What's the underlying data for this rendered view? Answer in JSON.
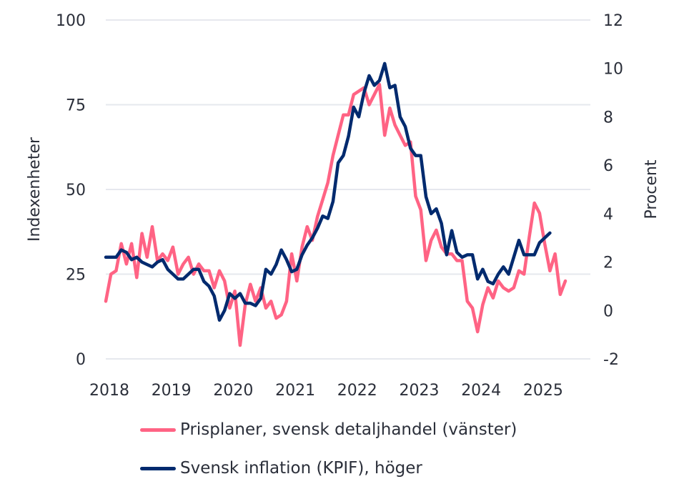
{
  "chart_data": {
    "type": "line",
    "title": "",
    "x_start": "2018-01",
    "x_frequency": "monthly",
    "x_tick_labels": [
      "2018",
      "2019",
      "2020",
      "2021",
      "2022",
      "2023",
      "2024",
      "2025"
    ],
    "left_axis": {
      "label": "Indexenheter",
      "ylim": [
        0,
        100
      ],
      "ticks": [
        0,
        25,
        50,
        75,
        100
      ]
    },
    "right_axis": {
      "label": "Procent",
      "ylim": [
        -2,
        12
      ],
      "ticks": [
        -2,
        0,
        2,
        4,
        6,
        8,
        10,
        12
      ]
    },
    "grid": true,
    "legend_position": "bottom",
    "series": [
      {
        "name": "Prisplaner, svensk detaljhandel (vänster)",
        "axis": "left",
        "color": "#ff6384",
        "values": [
          17,
          25,
          26,
          34,
          28,
          34,
          24,
          37,
          30,
          39,
          29,
          31,
          29,
          33,
          25,
          28,
          30,
          25,
          28,
          26,
          26,
          21,
          26,
          23,
          15,
          20,
          4,
          16,
          22,
          17,
          21,
          15,
          17,
          12,
          13,
          17,
          31,
          23,
          33,
          39,
          35,
          42,
          47,
          52,
          60,
          66,
          72,
          72,
          78,
          79,
          80,
          75,
          78,
          81,
          66,
          74,
          69,
          66,
          63,
          64,
          48,
          44,
          29,
          35,
          38,
          33,
          31,
          31,
          29,
          29,
          17,
          15,
          8,
          16,
          21,
          18,
          23,
          21,
          20,
          21,
          26,
          25,
          36,
          46,
          43,
          34,
          26,
          31,
          19,
          23
        ]
      },
      {
        "name": "Svensk inflation (KPIF), höger",
        "axis": "right",
        "color": "#002a6e",
        "values": [
          2.2,
          2.2,
          2.2,
          2.5,
          2.4,
          2.1,
          2.2,
          2.0,
          1.9,
          1.8,
          2.0,
          2.1,
          1.7,
          1.5,
          1.3,
          1.3,
          1.5,
          1.7,
          1.7,
          1.2,
          1.0,
          0.6,
          -0.4,
          0.0,
          0.7,
          0.5,
          0.7,
          0.3,
          0.3,
          0.2,
          0.5,
          1.7,
          1.5,
          1.9,
          2.5,
          2.1,
          1.6,
          1.7,
          2.3,
          2.7,
          3.0,
          3.4,
          3.9,
          3.8,
          4.5,
          6.1,
          6.4,
          7.2,
          8.4,
          8.0,
          9.0,
          9.7,
          9.3,
          9.5,
          10.2,
          9.2,
          9.3,
          8.0,
          7.6,
          6.7,
          6.4,
          6.4,
          4.7,
          4.0,
          4.2,
          3.6,
          2.3,
          3.3,
          2.4,
          2.2,
          2.3,
          2.3,
          1.3,
          1.7,
          1.2,
          1.1,
          1.5,
          1.8,
          1.5,
          2.2,
          2.9,
          2.3,
          2.3,
          2.3,
          2.8,
          3.0,
          3.2
        ]
      }
    ]
  }
}
